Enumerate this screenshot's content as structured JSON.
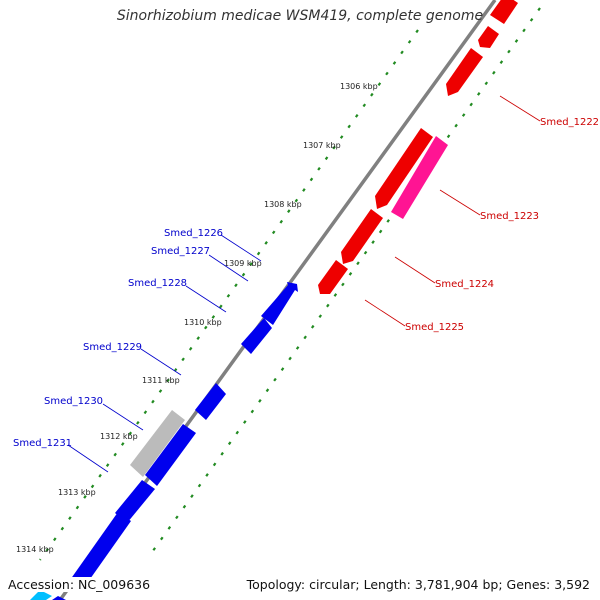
{
  "title": "Sinorhizobium medicae WSM419, complete genome",
  "footer": {
    "accession": "Accession: NC_009636",
    "topology": "Topology: circular; Length: 3,781,904 bp; Genes: 3,592"
  },
  "colors": {
    "forward_gene": "#0000ee",
    "reverse_gene": "#ee0000",
    "rna_gene": "#ff1493",
    "pseudogene": "#bbbbbb",
    "axis_ring": "#808080",
    "tick_dots": "#228b22"
  },
  "ticks": [
    {
      "label": "1306 kbp"
    },
    {
      "label": "1307 kbp"
    },
    {
      "label": "1308 kbp"
    },
    {
      "label": "1309 kbp"
    },
    {
      "label": "1310 kbp"
    },
    {
      "label": "1311 kbp"
    },
    {
      "label": "1312 kbp"
    },
    {
      "label": "1313 kbp"
    },
    {
      "label": "1314 kbp"
    }
  ],
  "right_labels": [
    {
      "name": "Smed_1222"
    },
    {
      "name": "Smed_1223"
    },
    {
      "name": "Smed_1224"
    },
    {
      "name": "Smed_1225"
    }
  ],
  "left_labels": [
    {
      "name": "Smed_1226"
    },
    {
      "name": "Smed_1227"
    },
    {
      "name": "Smed_1228"
    },
    {
      "name": "Smed_1229"
    },
    {
      "name": "Smed_1230"
    },
    {
      "name": "Smed_1231"
    }
  ]
}
